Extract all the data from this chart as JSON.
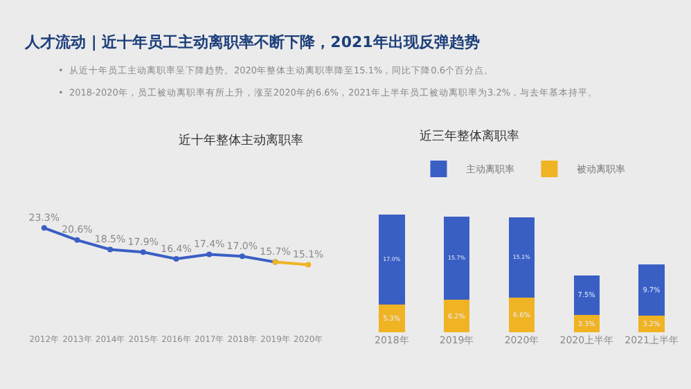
{
  "chart_data": [
    {
      "type": "line",
      "title": "近十年整体主动离职率",
      "annotations": [
        "人才流动 | 近十年员工主动离职率不断下降，2021年出现反弹趋势",
        "•  从近十年员工主动离职率呈下降趋势。2020年整体主动离职率降至15.1%，同比下降0.6个百分点。",
        "•  2018-2020年，员工被动离职率有所上升，涨至2020年的6.6%，2021年上半年员工被动离职率为3.2%，与去年基本持平。"
      ],
      "categories": [
        "2012年",
        "2013年",
        "2014年",
        "2015年",
        "2016年",
        "2017年",
        "2018年",
        "2019年",
        "2020年"
      ],
      "series": [
        {
          "color": "#3a5fc4",
          "values": [
            23.3,
            20.6,
            18.5,
            17.9,
            16.4,
            17.4,
            17.0,
            15.7,
            null
          ],
          "value_labels": [
            "23.3%",
            "20.6%",
            "18.5%",
            "17.9%",
            "16.4%",
            "17.4%",
            "17.0%",
            "15.7%",
            null
          ]
        },
        {
          "color": "#f0b323",
          "values": [
            null,
            null,
            null,
            null,
            null,
            null,
            null,
            15.7,
            15.1
          ],
          "value_labels": [
            null,
            null,
            null,
            null,
            null,
            null,
            null,
            null,
            "15.1%"
          ]
        }
      ],
      "marker": "circle",
      "legend": false,
      "grid": false,
      "tick_labels": "x"
    },
    {
      "type": "bar",
      "title": "近三年整体离职率",
      "stacked": true,
      "legend": "top",
      "categories": [
        "2018年",
        "2019年",
        "2020年",
        "2020上半年",
        "2021上半年"
      ],
      "series": [
        {
          "name": "被动离职率",
          "color": "#f0b323",
          "values": [
            5.3,
            6.2,
            6.6,
            3.3,
            3.2
          ],
          "value_labels": [
            "5.3%",
            "6.2%",
            "6.6%",
            "3.3%",
            "3.2%"
          ]
        },
        {
          "name": "主动离职率",
          "color": "#3a5fc4",
          "values": [
            17.0,
            15.7,
            15.1,
            7.5,
            9.7
          ],
          "value_labels": [
            "17.0%",
            "15.7%",
            "15.1%",
            "7.5%",
            "9.7%"
          ]
        }
      ],
      "grid": false,
      "tick_labels": "x"
    }
  ]
}
